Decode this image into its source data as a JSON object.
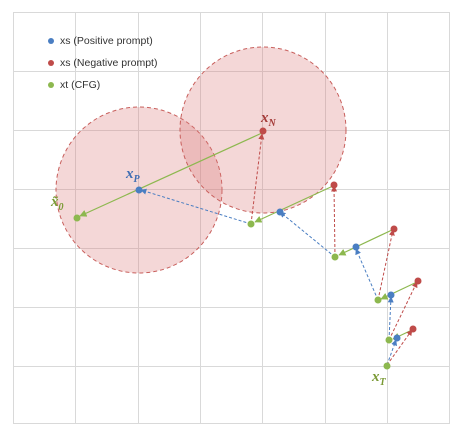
{
  "colors": {
    "positive": "#4a7ec2",
    "negative": "#bf4b49",
    "cfg": "#8db84f",
    "circle_fill": "#e8b4b5",
    "circle_stroke": "#c85f5c",
    "grid": "#d9d9d9"
  },
  "legend": {
    "items": [
      {
        "label": "xs (Positive prompt)",
        "color": "#4a7ec2"
      },
      {
        "label": "xs (Negative prompt)",
        "color": "#bf4b49"
      },
      {
        "label": "xt (CFG)",
        "color": "#8db84f"
      }
    ]
  },
  "labels": {
    "x0_main": "x̃",
    "x0_sub": "0",
    "xp_main": "x",
    "xp_sub": "P",
    "xn_main": "x",
    "xn_sub": "N",
    "xt_main": "x",
    "xt_sub": "T"
  }
}
